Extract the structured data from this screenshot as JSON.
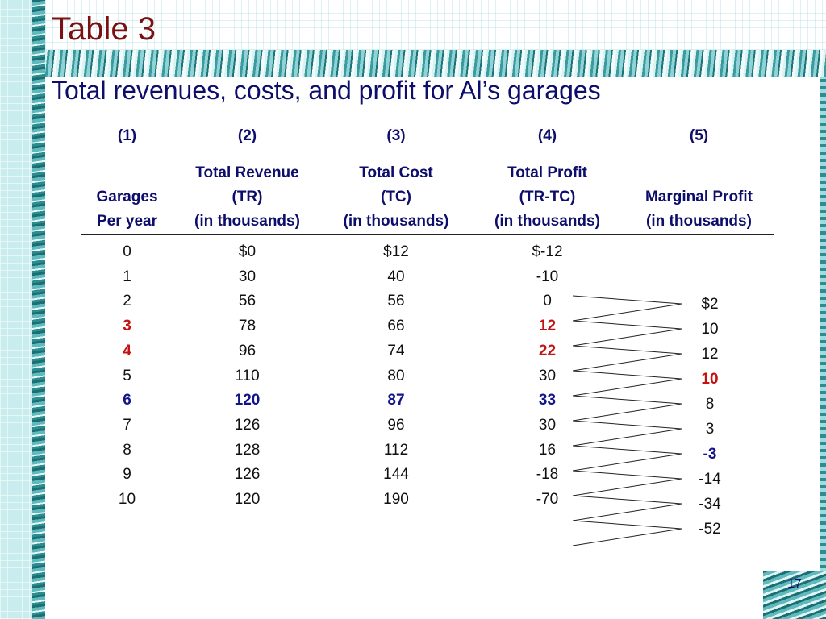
{
  "slide": {
    "title": "Table 3",
    "subtitle": "Total revenues, costs, and profit for Al’s garages",
    "page_number": "17"
  },
  "table": {
    "column_numbers": [
      "(1)",
      "(2)",
      "(3)",
      "(4)",
      "(5)"
    ],
    "headers": {
      "col1": [
        "",
        "Garages",
        "Per year"
      ],
      "col2": [
        "Total Revenue",
        "(TR)",
        "(in  thousands)"
      ],
      "col3": [
        "Total Cost",
        "(TC)",
        "(in  thousands)"
      ],
      "col4": [
        "Total Profit",
        "(TR-TC)",
        "(in   thousands)"
      ],
      "col5": [
        "",
        "Marginal Profit",
        "(in  thousands)"
      ]
    },
    "rows": [
      {
        "garages": "0",
        "tr": "$0",
        "tc": "$12",
        "profit": "$-12",
        "style": ""
      },
      {
        "garages": "1",
        "tr": "30",
        "tc": "40",
        "profit": "-10",
        "style": ""
      },
      {
        "garages": "2",
        "tr": "56",
        "tc": "56",
        "profit": "0",
        "style": ""
      },
      {
        "garages": "3",
        "tr": "78",
        "tc": "66",
        "profit": "12",
        "style": "red"
      },
      {
        "garages": "4",
        "tr": "96",
        "tc": "74",
        "profit": "22",
        "style": "red"
      },
      {
        "garages": "5",
        "tr": "110",
        "tc": "80",
        "profit": "30",
        "style": ""
      },
      {
        "garages": "6",
        "tr": "120",
        "tc": "87",
        "profit": "33",
        "style": "blue"
      },
      {
        "garages": "7",
        "tr": "126",
        "tc": "96",
        "profit": "30",
        "style": ""
      },
      {
        "garages": "8",
        "tr": "128",
        "tc": "112",
        "profit": "16",
        "style": ""
      },
      {
        "garages": "9",
        "tr": "126",
        "tc": "144",
        "profit": "-18",
        "style": ""
      },
      {
        "garages": "10",
        "tr": "120",
        "tc": "190",
        "profit": "-70",
        "style": ""
      }
    ],
    "marginal_profit": [
      {
        "value": "$2",
        "style": ""
      },
      {
        "value": "10",
        "style": ""
      },
      {
        "value": "12",
        "style": ""
      },
      {
        "value": "10",
        "style": "red"
      },
      {
        "value": "8",
        "style": ""
      },
      {
        "value": "3",
        "style": ""
      },
      {
        "value": "-3",
        "style": "blue"
      },
      {
        "value": "-14",
        "style": ""
      },
      {
        "value": "-34",
        "style": ""
      },
      {
        "value": "-52",
        "style": ""
      }
    ]
  },
  "colors": {
    "title": "#7a1010",
    "subtitle": "#0d0d6b",
    "highlight_red": "#c21212",
    "highlight_blue": "#13138a"
  }
}
